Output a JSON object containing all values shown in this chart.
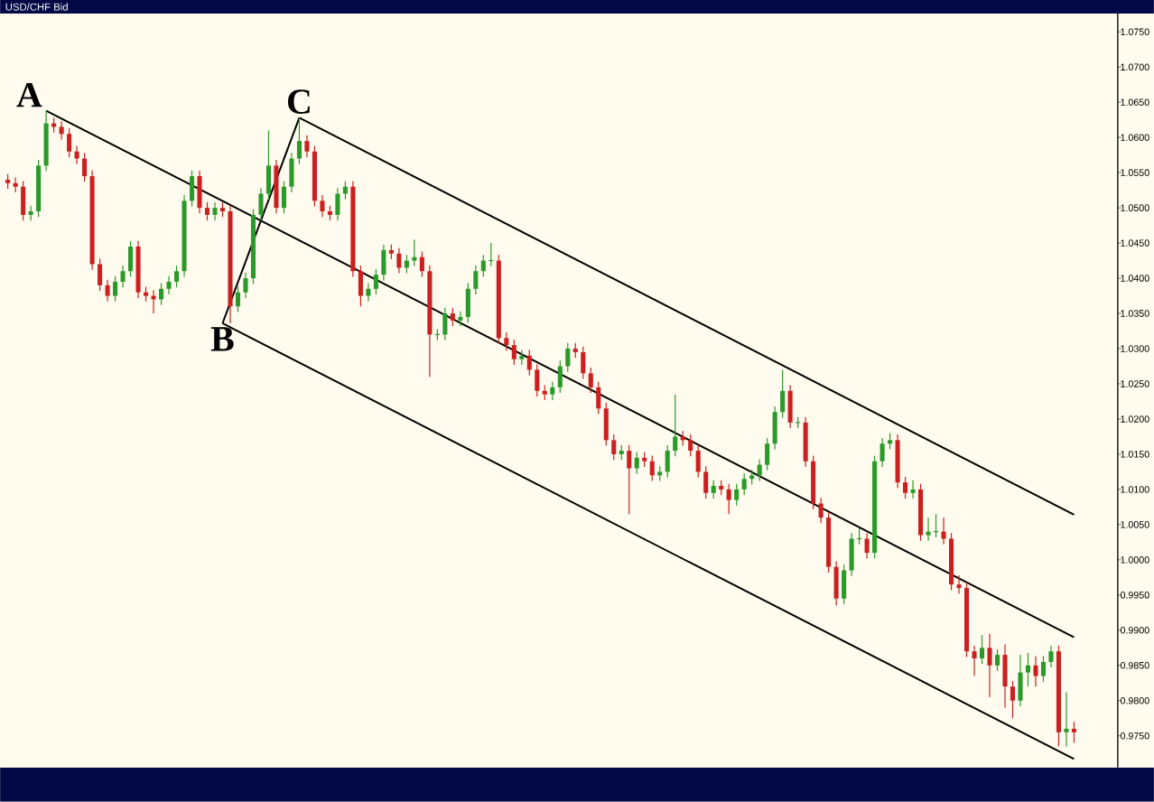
{
  "chart_data": {
    "type": "candlestick",
    "title": "USD/CHF Bid",
    "categories": [
      null,
      null,
      null,
      null,
      null,
      null,
      null,
      null,
      null,
      null,
      null,
      null,
      null,
      null,
      null,
      null,
      null,
      null,
      null,
      null,
      null,
      null,
      null,
      null,
      null,
      null,
      null,
      null,
      null,
      null,
      null,
      null,
      null,
      null,
      null,
      null,
      null,
      null,
      null,
      null,
      null,
      null,
      null,
      null,
      null,
      null,
      null,
      null,
      null,
      null,
      null,
      null,
      null,
      null,
      null,
      null,
      null,
      null,
      null,
      null,
      null,
      null,
      null,
      null,
      null,
      null,
      null,
      null,
      null,
      null,
      null,
      null,
      null,
      null,
      null,
      null,
      null,
      null,
      null,
      null,
      null,
      null,
      null,
      null,
      null,
      null,
      null,
      null,
      null,
      null,
      null,
      null,
      null,
      null,
      null,
      null,
      null,
      null,
      null,
      null,
      null,
      null,
      null,
      null,
      null,
      null,
      null,
      null,
      null,
      null,
      null,
      null,
      null,
      null,
      null,
      null,
      null,
      null,
      null,
      null,
      null,
      null,
      null,
      null,
      null,
      null,
      null,
      null,
      null,
      null,
      null,
      null,
      null,
      null,
      null,
      null,
      null,
      null,
      null,
      null
    ],
    "ohlc": [
      [
        1.054,
        1.0548,
        1.0527,
        1.0535
      ],
      [
        1.0535,
        1.0543,
        1.0522,
        1.053
      ],
      [
        1.053,
        1.0538,
        1.0482,
        1.049
      ],
      [
        1.049,
        1.0503,
        1.0482,
        1.0495
      ],
      [
        1.0495,
        1.0568,
        1.0487,
        1.056
      ],
      [
        1.056,
        1.0638,
        1.0552,
        1.062
      ],
      [
        1.062,
        1.0628,
        1.0607,
        1.0615
      ],
      [
        1.0615,
        1.0623,
        1.0597,
        1.0605
      ],
      [
        1.0605,
        1.0613,
        1.0572,
        1.058
      ],
      [
        1.058,
        1.0588,
        1.0562,
        1.057
      ],
      [
        1.057,
        1.0578,
        1.0537,
        1.0545
      ],
      [
        1.0545,
        1.0553,
        1.0412,
        1.042
      ],
      [
        1.042,
        1.0428,
        1.0382,
        1.039
      ],
      [
        1.039,
        1.0398,
        1.0367,
        1.0375
      ],
      [
        1.0375,
        1.0403,
        1.0367,
        1.0395
      ],
      [
        1.0395,
        1.0418,
        1.0387,
        1.041
      ],
      [
        1.041,
        1.0453,
        1.0402,
        1.0445
      ],
      [
        1.0445,
        1.0453,
        1.0372,
        1.038
      ],
      [
        1.038,
        1.0388,
        1.0367,
        1.0375
      ],
      [
        1.0375,
        1.0383,
        1.035,
        1.037
      ],
      [
        1.037,
        1.0393,
        1.0362,
        1.0385
      ],
      [
        1.0385,
        1.0403,
        1.0377,
        1.0395
      ],
      [
        1.0395,
        1.0418,
        1.0387,
        1.041
      ],
      [
        1.041,
        1.0518,
        1.0402,
        1.051
      ],
      [
        1.051,
        1.0553,
        1.0502,
        1.0545
      ],
      [
        1.0545,
        1.0553,
        1.0492,
        1.05
      ],
      [
        1.05,
        1.0508,
        1.0482,
        1.049
      ],
      [
        1.049,
        1.0508,
        1.0482,
        1.05
      ],
      [
        1.05,
        1.0508,
        1.0487,
        1.0495
      ],
      [
        1.0495,
        1.0503,
        1.0336,
        1.036
      ],
      [
        1.036,
        1.0388,
        1.0352,
        1.038
      ],
      [
        1.038,
        1.0408,
        1.0372,
        1.04
      ],
      [
        1.04,
        1.0498,
        1.0392,
        1.049
      ],
      [
        1.049,
        1.0528,
        1.0482,
        1.052
      ],
      [
        1.052,
        1.061,
        1.0512,
        1.056
      ],
      [
        1.056,
        1.0568,
        1.0492,
        1.05
      ],
      [
        1.05,
        1.0538,
        1.0492,
        1.053
      ],
      [
        1.053,
        1.0578,
        1.0522,
        1.057
      ],
      [
        1.057,
        1.0628,
        1.0562,
        1.0595
      ],
      [
        1.0595,
        1.0603,
        1.0572,
        1.058
      ],
      [
        1.058,
        1.0588,
        1.0502,
        1.051
      ],
      [
        1.051,
        1.0518,
        1.0487,
        1.0495
      ],
      [
        1.0495,
        1.0503,
        1.0482,
        1.049
      ],
      [
        1.049,
        1.0528,
        1.0482,
        1.052
      ],
      [
        1.052,
        1.0538,
        1.0512,
        1.053
      ],
      [
        1.053,
        1.0538,
        1.0402,
        1.041
      ],
      [
        1.041,
        1.0418,
        1.036,
        1.0375
      ],
      [
        1.0375,
        1.0393,
        1.0367,
        1.0385
      ],
      [
        1.0385,
        1.0413,
        1.0377,
        1.0405
      ],
      [
        1.0405,
        1.0448,
        1.0397,
        1.044
      ],
      [
        1.044,
        1.0448,
        1.0427,
        1.0435
      ],
      [
        1.0435,
        1.0443,
        1.0407,
        1.0415
      ],
      [
        1.0415,
        1.0433,
        1.0407,
        1.0425
      ],
      [
        1.0425,
        1.0455,
        1.0417,
        1.043
      ],
      [
        1.043,
        1.0438,
        1.0402,
        1.041
      ],
      [
        1.041,
        1.0418,
        1.026,
        1.032
      ],
      [
        1.032,
        1.0328,
        1.0312,
        1.032
      ],
      [
        1.032,
        1.0358,
        1.0312,
        1.035
      ],
      [
        1.035,
        1.0358,
        1.0332,
        1.034
      ],
      [
        1.034,
        1.0353,
        1.0332,
        1.0345
      ],
      [
        1.0345,
        1.0393,
        1.0337,
        1.0385
      ],
      [
        1.0385,
        1.0418,
        1.0377,
        1.041
      ],
      [
        1.041,
        1.0433,
        1.0402,
        1.0425
      ],
      [
        1.0425,
        1.045,
        1.0417,
        1.0425
      ],
      [
        1.0425,
        1.0433,
        1.0307,
        1.0315
      ],
      [
        1.0315,
        1.0323,
        1.0297,
        1.0305
      ],
      [
        1.0305,
        1.0313,
        1.0277,
        1.0285
      ],
      [
        1.0285,
        1.0298,
        1.0277,
        1.029
      ],
      [
        1.029,
        1.0298,
        1.0262,
        1.027
      ],
      [
        1.027,
        1.0278,
        1.0232,
        1.024
      ],
      [
        1.024,
        1.0248,
        1.0227,
        1.0235
      ],
      [
        1.0235,
        1.0253,
        1.0227,
        1.0245
      ],
      [
        1.0245,
        1.0283,
        1.0237,
        1.0275
      ],
      [
        1.0275,
        1.0308,
        1.0267,
        1.03
      ],
      [
        1.03,
        1.0308,
        1.0287,
        1.0295
      ],
      [
        1.0295,
        1.0303,
        1.0257,
        1.0265
      ],
      [
        1.0265,
        1.0273,
        1.0237,
        1.0245
      ],
      [
        1.0245,
        1.0253,
        1.0207,
        1.0215
      ],
      [
        1.0215,
        1.0223,
        1.0162,
        1.017
      ],
      [
        1.017,
        1.0178,
        1.0142,
        1.015
      ],
      [
        1.015,
        1.0163,
        1.0142,
        1.0155
      ],
      [
        1.0155,
        1.0163,
        1.0065,
        1.013
      ],
      [
        1.013,
        1.0153,
        1.0122,
        1.0145
      ],
      [
        1.0145,
        1.0153,
        1.0132,
        1.014
      ],
      [
        1.014,
        1.0148,
        1.0112,
        1.012
      ],
      [
        1.012,
        1.0133,
        1.0112,
        1.0125
      ],
      [
        1.0125,
        1.0163,
        1.0117,
        1.0155
      ],
      [
        1.0155,
        1.0235,
        1.0147,
        1.0175
      ],
      [
        1.0175,
        1.0183,
        1.0162,
        1.017
      ],
      [
        1.017,
        1.0178,
        1.0147,
        1.0155
      ],
      [
        1.0155,
        1.0163,
        1.0117,
        1.0125
      ],
      [
        1.0125,
        1.0133,
        1.0087,
        1.0095
      ],
      [
        1.0095,
        1.0113,
        1.0087,
        1.0105
      ],
      [
        1.0105,
        1.0113,
        1.0092,
        1.01
      ],
      [
        1.01,
        1.0108,
        1.0065,
        1.0085
      ],
      [
        1.0085,
        1.0108,
        1.0077,
        1.01
      ],
      [
        1.01,
        1.0123,
        1.0092,
        1.0115
      ],
      [
        1.0115,
        1.0128,
        1.0107,
        1.012
      ],
      [
        1.012,
        1.0143,
        1.0112,
        1.0135
      ],
      [
        1.0135,
        1.0173,
        1.0127,
        1.0165
      ],
      [
        1.0165,
        1.0218,
        1.0157,
        1.021
      ],
      [
        1.021,
        1.027,
        1.0202,
        1.024
      ],
      [
        1.024,
        1.0248,
        1.0187,
        1.0195
      ],
      [
        1.0195,
        1.0203,
        1.0187,
        1.0195
      ],
      [
        1.0195,
        1.0203,
        1.0132,
        1.014
      ],
      [
        1.014,
        1.0148,
        1.0072,
        1.008
      ],
      [
        1.008,
        1.0088,
        1.0052,
        1.006
      ],
      [
        1.006,
        1.0068,
        0.9982,
        0.999
      ],
      [
        0.999,
        0.9998,
        0.9935,
        0.9945
      ],
      [
        0.9945,
        0.9993,
        0.9937,
        0.9985
      ],
      [
        0.9985,
        1.0038,
        0.9977,
        1.003
      ],
      [
        1.003,
        1.0045,
        1.0022,
        1.003
      ],
      [
        1.003,
        1.0038,
        1.0002,
        1.001
      ],
      [
        1.001,
        1.0148,
        1.0002,
        1.014
      ],
      [
        1.014,
        1.0173,
        1.0132,
        1.0165
      ],
      [
        1.0165,
        1.018,
        1.0157,
        1.017
      ],
      [
        1.017,
        1.0178,
        1.0102,
        1.011
      ],
      [
        1.011,
        1.0118,
        1.0087,
        1.0095
      ],
      [
        1.0095,
        1.0113,
        1.0087,
        1.01
      ],
      [
        1.01,
        1.0108,
        1.0027,
        1.0035
      ],
      [
        1.0035,
        1.006,
        1.0027,
        1.004
      ],
      [
        1.004,
        1.0065,
        1.0032,
        1.004
      ],
      [
        1.004,
        1.006,
        1.0022,
        1.003
      ],
      [
        1.003,
        1.0038,
        0.9957,
        0.9965
      ],
      [
        0.9965,
        0.9978,
        0.9952,
        0.996
      ],
      [
        0.996,
        0.9968,
        0.9862,
        0.987
      ],
      [
        0.987,
        0.9878,
        0.9835,
        0.986
      ],
      [
        0.986,
        0.9893,
        0.9852,
        0.9875
      ],
      [
        0.9875,
        0.9895,
        0.9805,
        0.985
      ],
      [
        0.985,
        0.9873,
        0.9842,
        0.9865
      ],
      [
        0.9865,
        0.988,
        0.979,
        0.982
      ],
      [
        0.982,
        0.9828,
        0.9775,
        0.98
      ],
      [
        0.98,
        0.9865,
        0.9792,
        0.984
      ],
      [
        0.984,
        0.9868,
        0.982,
        0.985
      ],
      [
        0.985,
        0.9863,
        0.982,
        0.9835
      ],
      [
        0.9835,
        0.9863,
        0.9827,
        0.9855
      ],
      [
        0.9855,
        0.9878,
        0.9847,
        0.987
      ],
      [
        0.987,
        0.9878,
        0.9735,
        0.9755
      ],
      [
        0.9755,
        0.9812,
        0.9735,
        0.976
      ],
      [
        0.976,
        0.977,
        0.974,
        0.9755
      ]
    ],
    "colors": [
      "#cc2020",
      "#cc2020",
      "#cc2020",
      "#2a9a2a",
      "#2a9a2a",
      "#2a9a2a",
      "#cc2020",
      "#cc2020",
      "#cc2020",
      "#cc2020",
      "#cc2020",
      "#cc2020",
      "#cc2020",
      "#cc2020",
      "#2a9a2a",
      "#2a9a2a",
      "#2a9a2a",
      "#cc2020",
      "#cc2020",
      "#cc2020",
      "#2a9a2a",
      "#2a9a2a",
      "#2a9a2a",
      "#2a9a2a",
      "#2a9a2a",
      "#cc2020",
      "#cc2020",
      "#2a9a2a",
      "#cc2020",
      "#cc2020",
      "#2a9a2a",
      "#2a9a2a",
      "#2a9a2a",
      "#2a9a2a",
      "#2a9a2a",
      "#cc2020",
      "#2a9a2a",
      "#2a9a2a",
      "#2a9a2a",
      "#cc2020",
      "#cc2020",
      "#cc2020",
      "#cc2020",
      "#2a9a2a",
      "#2a9a2a",
      "#cc2020",
      "#cc2020",
      "#2a9a2a",
      "#2a9a2a",
      "#2a9a2a",
      "#cc2020",
      "#cc2020",
      "#2a9a2a",
      "#2a9a2a",
      "#cc2020",
      "#cc2020",
      "#2a9a2a",
      "#2a9a2a",
      "#cc2020",
      "#2a9a2a",
      "#2a9a2a",
      "#2a9a2a",
      "#2a9a2a",
      "#2a9a2a",
      "#cc2020",
      "#cc2020",
      "#cc2020",
      "#2a9a2a",
      "#cc2020",
      "#cc2020",
      "#cc2020",
      "#2a9a2a",
      "#2a9a2a",
      "#2a9a2a",
      "#cc2020",
      "#cc2020",
      "#cc2020",
      "#cc2020",
      "#cc2020",
      "#cc2020",
      "#2a9a2a",
      "#cc2020",
      "#2a9a2a",
      "#cc2020",
      "#cc2020",
      "#2a9a2a",
      "#2a9a2a",
      "#2a9a2a",
      "#cc2020",
      "#cc2020",
      "#cc2020",
      "#cc2020",
      "#2a9a2a",
      "#cc2020",
      "#cc2020",
      "#2a9a2a",
      "#2a9a2a",
      "#2a9a2a",
      "#2a9a2a",
      "#2a9a2a",
      "#2a9a2a",
      "#2a9a2a",
      "#cc2020",
      "#2a9a2a",
      "#cc2020",
      "#cc2020",
      "#cc2020",
      "#cc2020",
      "#cc2020",
      "#2a9a2a",
      "#2a9a2a",
      "#2a9a2a",
      "#cc2020",
      "#2a9a2a",
      "#2a9a2a",
      "#2a9a2a",
      "#cc2020",
      "#cc2020",
      "#2a9a2a",
      "#cc2020",
      "#2a9a2a",
      "#2a9a2a",
      "#cc2020",
      "#cc2020",
      "#cc2020",
      "#cc2020",
      "#cc2020",
      "#2a9a2a",
      "#cc2020",
      "#2a9a2a",
      "#cc2020",
      "#cc2020",
      "#2a9a2a",
      "#2a9a2a",
      "#cc2020",
      "#2a9a2a",
      "#2a9a2a",
      "#cc2020",
      "#2a9a2a",
      "#cc2020"
    ],
    "series": [
      {
        "type": "line",
        "color": "#000000",
        "values": [
          null,
          null,
          null,
          null,
          null,
          1.0638,
          null,
          null,
          null,
          null,
          null,
          null,
          null,
          null,
          null,
          null,
          null,
          null,
          null,
          null,
          null,
          null,
          null,
          null,
          null,
          null,
          null,
          null,
          null,
          null,
          null,
          null,
          null,
          null,
          null,
          null,
          null,
          null,
          null,
          null,
          null,
          null,
          null,
          null,
          null,
          null,
          null,
          null,
          null,
          null,
          null,
          null,
          null,
          null,
          null,
          null,
          null,
          null,
          null,
          null,
          null,
          null,
          null,
          null,
          null,
          null,
          null,
          null,
          null,
          null,
          null,
          null,
          null,
          null,
          null,
          null,
          null,
          null,
          null,
          null,
          null,
          null,
          null,
          null,
          null,
          null,
          null,
          null,
          null,
          null,
          null,
          null,
          null,
          null,
          null,
          null,
          null,
          null,
          null,
          null,
          null,
          null,
          null,
          null,
          null,
          null,
          null,
          null,
          null,
          null,
          null,
          null,
          null,
          null,
          null,
          null,
          null,
          null,
          null,
          null,
          null,
          null,
          null,
          null,
          null,
          null,
          null,
          null,
          null,
          null,
          null,
          null,
          null,
          null,
          null,
          null,
          null,
          null,
          null,
          0.989
        ]
      },
      {
        "type": "line",
        "color": "#000000",
        "values": [
          null,
          null,
          null,
          null,
          null,
          null,
          null,
          null,
          null,
          null,
          null,
          null,
          null,
          null,
          null,
          null,
          null,
          null,
          null,
          null,
          null,
          null,
          null,
          null,
          null,
          null,
          null,
          null,
          1.0336,
          null,
          null,
          null,
          null,
          null,
          null,
          null,
          null,
          null,
          1.0628,
          null,
          null,
          null,
          null,
          null,
          null,
          null,
          null,
          null,
          null,
          null,
          null,
          null,
          null,
          null,
          null,
          null,
          null,
          null,
          null,
          null,
          null,
          null,
          null,
          null,
          null,
          null,
          null,
          null,
          null,
          null,
          null,
          null,
          null,
          null,
          null,
          null,
          null,
          null,
          null,
          null,
          null,
          null,
          null,
          null,
          null,
          null,
          null,
          null,
          null,
          null,
          null,
          null,
          null,
          null,
          null,
          null,
          null,
          null,
          null,
          null,
          null,
          null,
          null,
          null,
          null,
          null,
          null,
          null,
          null,
          null,
          null,
          null,
          null,
          null,
          null,
          null,
          null,
          null,
          null,
          null,
          null,
          null,
          null,
          null,
          null,
          null,
          null,
          null,
          null,
          null,
          null,
          null,
          null,
          null,
          null,
          null,
          null,
          null,
          null,
          null
        ]
      },
      {
        "type": "line",
        "color": "#000000",
        "values": [
          null,
          null,
          null,
          null,
          null,
          null,
          null,
          null,
          null,
          null,
          null,
          null,
          null,
          null,
          null,
          null,
          null,
          null,
          null,
          null,
          null,
          null,
          null,
          null,
          null,
          null,
          null,
          null,
          null,
          null,
          null,
          null,
          null,
          null,
          null,
          null,
          null,
          null,
          1.0628,
          null,
          null,
          null,
          null,
          null,
          null,
          null,
          null,
          null,
          null,
          null,
          null,
          null,
          null,
          null,
          null,
          null,
          null,
          null,
          null,
          null,
          null,
          null,
          null,
          null,
          null,
          null,
          null,
          null,
          null,
          null,
          null,
          null,
          null,
          null,
          null,
          null,
          null,
          null,
          null,
          null,
          null,
          null,
          null,
          null,
          null,
          null,
          null,
          null,
          null,
          null,
          null,
          null,
          null,
          null,
          null,
          null,
          null,
          null,
          null,
          null,
          null,
          null,
          null,
          null,
          null,
          null,
          null,
          null,
          null,
          null,
          null,
          null,
          null,
          null,
          null,
          null,
          null,
          null,
          null,
          null,
          null,
          null,
          null,
          null,
          null,
          null,
          null,
          null,
          null,
          null,
          null,
          null,
          null,
          null,
          null,
          null,
          null,
          null,
          null,
          1.0064
        ]
      },
      {
        "type": "line",
        "color": "#000000",
        "values": [
          null,
          null,
          null,
          null,
          null,
          null,
          null,
          null,
          null,
          null,
          null,
          null,
          null,
          null,
          null,
          null,
          null,
          null,
          null,
          null,
          null,
          null,
          null,
          null,
          null,
          null,
          null,
          null,
          1.0336,
          null,
          null,
          null,
          null,
          null,
          null,
          null,
          null,
          null,
          null,
          null,
          null,
          null,
          null,
          null,
          null,
          null,
          null,
          null,
          null,
          null,
          null,
          null,
          null,
          null,
          null,
          null,
          null,
          null,
          null,
          null,
          null,
          null,
          null,
          null,
          null,
          null,
          null,
          null,
          null,
          null,
          null,
          null,
          null,
          null,
          null,
          null,
          null,
          null,
          null,
          null,
          null,
          null,
          null,
          null,
          null,
          null,
          null,
          null,
          null,
          null,
          null,
          null,
          null,
          null,
          null,
          null,
          null,
          null,
          null,
          null,
          null,
          null,
          null,
          null,
          null,
          null,
          null,
          null,
          null,
          null,
          null,
          null,
          null,
          null,
          null,
          null,
          null,
          null,
          null,
          null,
          null,
          null,
          null,
          null,
          null,
          null,
          null,
          null,
          null,
          null,
          null,
          null,
          null,
          null,
          null,
          null,
          null,
          null,
          null,
          0.9717
        ]
      }
    ],
    "annotations": [
      "A",
      "B",
      "C"
    ],
    "ylim": [
      0.9705,
      1.0776
    ],
    "yticks": [
      {
        "value": 0.975,
        "label": "0.9750"
      },
      {
        "value": 0.98,
        "label": "0.9800"
      },
      {
        "value": 0.985,
        "label": "0.9850"
      },
      {
        "value": 0.99,
        "label": "0.9900"
      },
      {
        "value": 0.995,
        "label": "0.9950"
      },
      {
        "value": 1.0,
        "label": "1.0000"
      },
      {
        "value": 1.005,
        "label": "1.0050"
      },
      {
        "value": 1.01,
        "label": "1.0100"
      },
      {
        "value": 1.015,
        "label": "1.0150"
      },
      {
        "value": 1.02,
        "label": "1.0200"
      },
      {
        "value": 1.025,
        "label": "1.0250"
      },
      {
        "value": 1.03,
        "label": "1.0300"
      },
      {
        "value": 1.035,
        "label": "1.0350"
      },
      {
        "value": 1.04,
        "label": "1.0400"
      },
      {
        "value": 1.045,
        "label": "1.0450"
      },
      {
        "value": 1.05,
        "label": "1.0500"
      },
      {
        "value": 1.055,
        "label": "1.0550"
      },
      {
        "value": 1.06,
        "label": "1.0600"
      },
      {
        "value": 1.065,
        "label": "1.0650"
      },
      {
        "value": 1.07,
        "label": "1.0700"
      },
      {
        "value": 1.075,
        "label": "1.0750"
      }
    ]
  }
}
